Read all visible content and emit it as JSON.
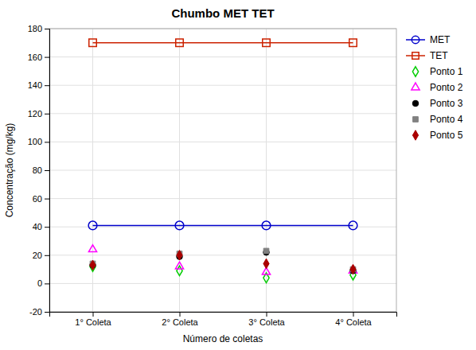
{
  "chart_data": {
    "type": "scatter",
    "title": "Chumbo MET TET",
    "xlabel": "Número de coletas",
    "ylabel": "Concentração (mg/kg)",
    "categories": [
      "1° Coleta",
      "2° Coleta",
      "3° Coleta",
      "4° Coleta"
    ],
    "series": [
      {
        "name": "MET",
        "type": "line",
        "marker": "circle-open",
        "color": "#0000cc",
        "values": [
          41,
          41,
          41,
          41
        ]
      },
      {
        "name": "TET",
        "type": "line",
        "marker": "square-open",
        "color": "#cc2200",
        "values": [
          170,
          170,
          170,
          170
        ]
      },
      {
        "name": "Ponto 1",
        "type": "scatter",
        "marker": "diamond-open",
        "color": "#00cc00",
        "values": [
          12,
          9,
          4,
          6
        ]
      },
      {
        "name": "Ponto 2",
        "type": "scatter",
        "marker": "triangle-open",
        "color": "#ff00ff",
        "values": [
          24,
          12,
          8,
          9
        ]
      },
      {
        "name": "Ponto 3",
        "type": "scatter",
        "marker": "circle",
        "color": "#000000",
        "values": [
          13,
          19,
          22,
          9
        ]
      },
      {
        "name": "Ponto 4",
        "type": "scatter",
        "marker": "square",
        "color": "#808080",
        "values": [
          14,
          21,
          23,
          10
        ]
      },
      {
        "name": "Ponto 5",
        "type": "scatter",
        "marker": "diamond",
        "color": "#aa0000",
        "values": [
          13,
          20,
          14,
          10
        ]
      }
    ],
    "ylim": [
      -20,
      180
    ],
    "yticks": [
      -20,
      0,
      20,
      40,
      60,
      80,
      100,
      120,
      140,
      160,
      180
    ],
    "grid": true,
    "legend": "upper right"
  }
}
